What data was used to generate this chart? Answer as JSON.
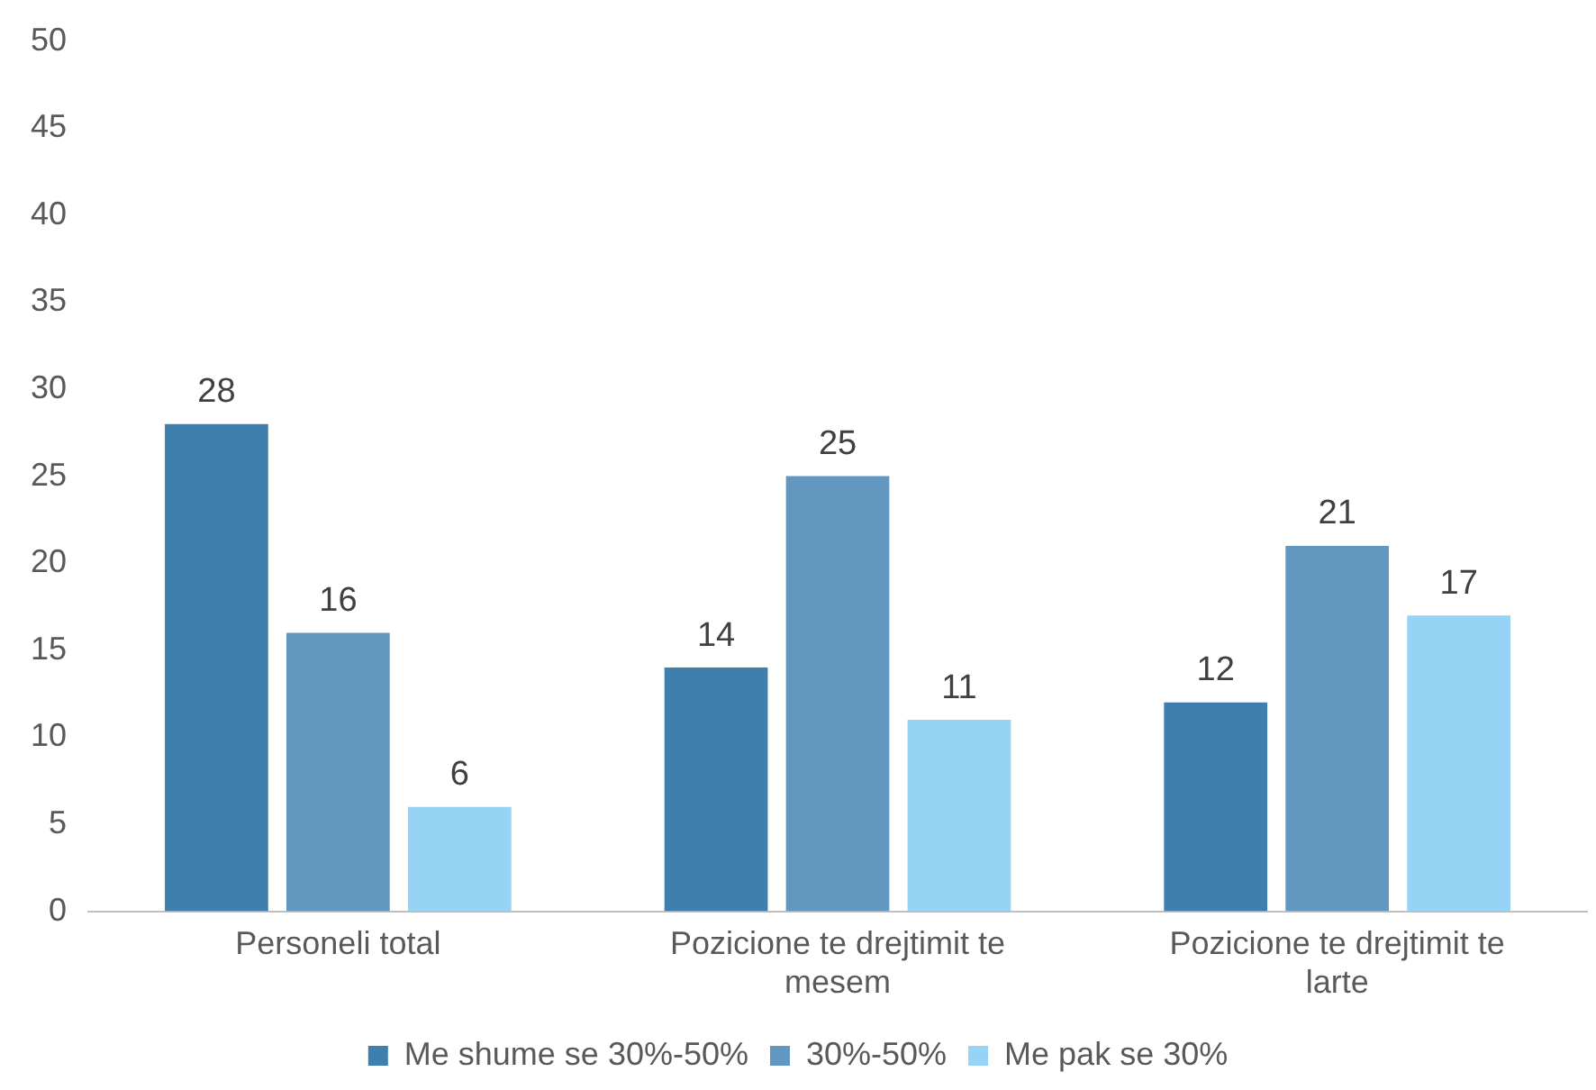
{
  "chart_data": {
    "type": "bar",
    "categories": [
      "Personeli total",
      "Pozicione te drejtimit te mesem",
      "Pozicione te drejtimit te larte"
    ],
    "series": [
      {
        "name": "Me shume se 30%-50%",
        "color": "#3f7fae",
        "values": [
          28,
          14,
          12
        ]
      },
      {
        "name": "30%-50%",
        "color": "#6298c0",
        "values": [
          16,
          25,
          21
        ]
      },
      {
        "name": "Me pak se 30%",
        "color": "#97d3f4",
        "values": [
          6,
          11,
          17
        ]
      }
    ],
    "ylim": [
      0,
      50
    ],
    "yticks": [
      0,
      5,
      10,
      15,
      20,
      25,
      30,
      35,
      40,
      45,
      50
    ],
    "grid": false,
    "legend": "bottom",
    "data_labels": true
  }
}
